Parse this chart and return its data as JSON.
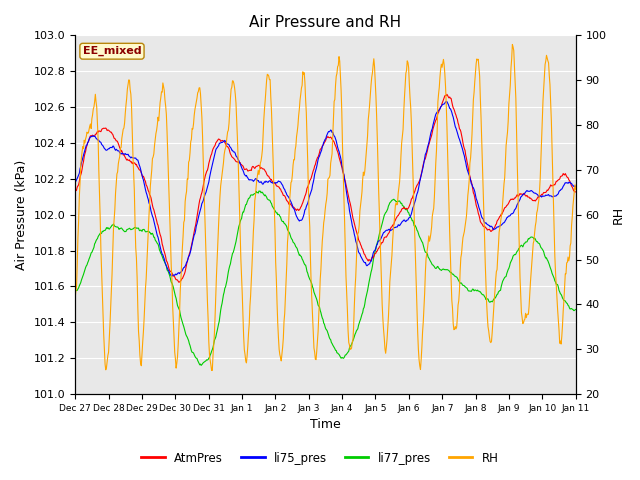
{
  "title": "Air Pressure and RH",
  "xlabel": "Time",
  "ylabel_left": "Air Pressure (kPa)",
  "ylabel_right": "RH",
  "ylim_left": [
    101.0,
    103.0
  ],
  "ylim_right": [
    20,
    100
  ],
  "yticks_left": [
    101.0,
    101.2,
    101.4,
    101.6,
    101.8,
    102.0,
    102.2,
    102.4,
    102.6,
    102.8,
    103.0
  ],
  "yticks_right": [
    20,
    30,
    40,
    50,
    60,
    70,
    80,
    90,
    100
  ],
  "xtick_labels": [
    "Dec 27",
    "Dec 28",
    "Dec 29",
    "Dec 30",
    "Dec 31",
    "Jan 1",
    "Jan 2",
    "Jan 3",
    "Jan 4",
    "Jan 5",
    "Jan 6",
    "Jan 7",
    "Jan 8",
    "Jan 9",
    "Jan 10",
    "Jan 11"
  ],
  "annotation_text": "EE_mixed",
  "annotation_color": "#8B0000",
  "annotation_bg": "#FFFACD",
  "annotation_border": "#B8860B",
  "line_colors": {
    "AtmPres": "#FF0000",
    "li75_pres": "#0000FF",
    "li77_pres": "#00CC00",
    "RH": "#FFA500"
  },
  "line_widths": {
    "AtmPres": 0.8,
    "li75_pres": 0.8,
    "li77_pres": 0.8,
    "RH": 0.8
  },
  "legend_labels": [
    "AtmPres",
    "li75_pres",
    "li77_pres",
    "RH"
  ],
  "legend_colors": [
    "#FF0000",
    "#0000FF",
    "#00CC00",
    "#FFA500"
  ],
  "fig_bg_color": "#FFFFFF",
  "plot_bg_color": "#E8E8E8",
  "title_fontsize": 11,
  "label_fontsize": 9,
  "tick_fontsize": 8
}
